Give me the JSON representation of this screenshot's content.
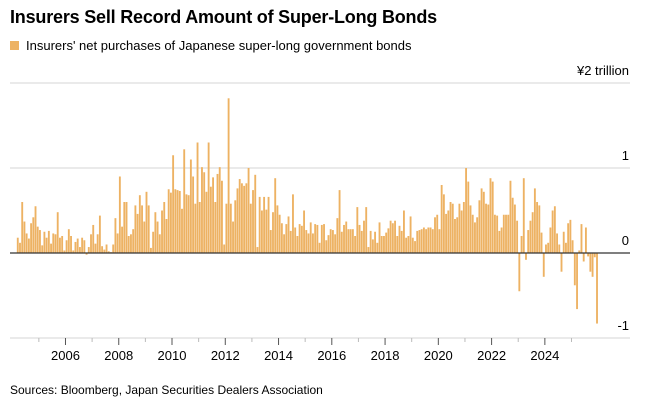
{
  "title": "Insurers Sell Record Amount of Super-Long Bonds",
  "source": "Sources: Bloomberg, Japan Securities Dealers Association",
  "colors": {
    "bars": "#EDB263",
    "zero_line": "#333333",
    "grid": "#DDDDDD"
  },
  "chart_data": {
    "type": "bar",
    "title": "Insurers Sell Record Amount of Super-Long Bonds",
    "series": [
      {
        "name": "Insurers' net purchases of Japanese super-long government bonds",
        "start": "2004-03",
        "frequency": "monthly",
        "values": [
          0.18,
          0.12,
          0.6,
          0.37,
          0.23,
          0.17,
          0.35,
          0.42,
          0.55,
          0.31,
          0.27,
          0.09,
          0.25,
          0.18,
          0.26,
          0.11,
          0.23,
          0.22,
          0.48,
          0.18,
          0.2,
          0.03,
          0.15,
          0.28,
          0.2,
          0.03,
          0.13,
          0.17,
          0.07,
          0.18,
          0.15,
          -0.02,
          0.07,
          0.22,
          0.33,
          0.11,
          0.22,
          0.44,
          0.08,
          0.04,
          0.1,
          0.02,
          0.01,
          0.1,
          0.41,
          0.23,
          0.9,
          0.31,
          0.6,
          0.6,
          0.2,
          0.22,
          0.28,
          0.56,
          0.46,
          0.68,
          0.56,
          0.37,
          0.72,
          0.56,
          0.06,
          0.25,
          0.48,
          0.37,
          0.22,
          0.5,
          0.6,
          0.4,
          0.75,
          0.71,
          1.15,
          0.75,
          0.74,
          0.73,
          0.52,
          1.22,
          0.69,
          0.68,
          1.1,
          0.9,
          0.58,
          1.3,
          0.6,
          1.01,
          0.95,
          0.72,
          1.3,
          0.78,
          0.89,
          0.6,
          0.93,
          1.01,
          0.85,
          0.1,
          0.58,
          1.82,
          0.58,
          0.37,
          0.62,
          0.76,
          0.87,
          0.82,
          0.79,
          0.82,
          1.0,
          0.58,
          0.74,
          0.92,
          0.07,
          0.66,
          0.5,
          0.66,
          0.51,
          0.66,
          0.27,
          0.48,
          0.88,
          0.56,
          0.45,
          0.35,
          0.22,
          0.34,
          0.43,
          0.26,
          0.69,
          0.3,
          0.2,
          0.34,
          0.32,
          0.5,
          0.27,
          0.23,
          0.36,
          0.23,
          0.34,
          0.33,
          0.12,
          0.33,
          0.34,
          0.15,
          0.21,
          0.28,
          0.27,
          0.22,
          0.41,
          0.74,
          0.25,
          0.33,
          0.37,
          0.28,
          0.28,
          0.28,
          0.2,
          0.54,
          0.33,
          0.26,
          0.38,
          0.54,
          0.07,
          0.26,
          0.16,
          0.25,
          0.12,
          0.36,
          0.2,
          0.2,
          0.24,
          0.29,
          0.38,
          0.35,
          0.38,
          0.2,
          0.32,
          0.26,
          0.5,
          0.18,
          0.2,
          0.43,
          0.18,
          0.14,
          0.26,
          0.27,
          0.28,
          0.3,
          0.28,
          0.3,
          0.3,
          0.28,
          0.42,
          0.45,
          0.28,
          0.8,
          0.69,
          0.46,
          0.5,
          0.6,
          0.58,
          0.4,
          0.42,
          0.58,
          0.5,
          0.6,
          1.0,
          0.84,
          0.56,
          0.45,
          0.36,
          0.42,
          0.62,
          0.76,
          0.72,
          0.58,
          0.57,
          0.88,
          0.84,
          0.45,
          0.44,
          0.26,
          0.3,
          0.45,
          0.45,
          0.45,
          0.85,
          0.65,
          0.57,
          0.38,
          -0.45,
          0.2,
          0.88,
          -0.08,
          0.27,
          0.38,
          0.48,
          0.76,
          0.6,
          0.56,
          0.24,
          -0.28,
          0.1,
          0.12,
          0.3,
          0.5,
          0.55,
          0.23,
          0.1,
          -0.22,
          0.25,
          0.12,
          0.35,
          0.39,
          0.15,
          -0.38,
          -0.66,
          0.03,
          0.34,
          -0.1,
          0.3,
          -0.04,
          -0.22,
          -0.28,
          -0.05,
          -0.83
        ]
      }
    ],
    "ylabel": "¥2 trillion",
    "ylim": [
      -1,
      2
    ],
    "yticks": [
      {
        "value": 2,
        "label": "¥2 trillion"
      },
      {
        "value": 1,
        "label": "1"
      },
      {
        "value": 0,
        "label": "0"
      },
      {
        "value": -1,
        "label": "-1"
      }
    ],
    "xlim": [
      "2003-12",
      "2026-05"
    ],
    "xticks": [
      "2006",
      "2008",
      "2010",
      "2012",
      "2014",
      "2016",
      "2018",
      "2020",
      "2022",
      "2024"
    ],
    "grid": true,
    "legend": "top-left"
  }
}
